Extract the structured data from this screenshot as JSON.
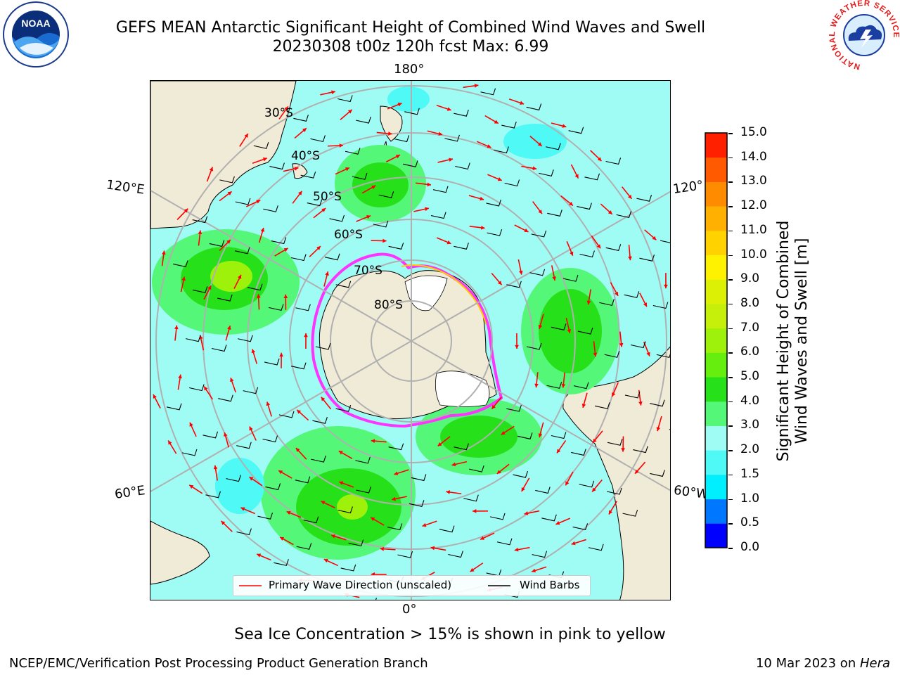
{
  "title": {
    "line1": "GEFS MEAN Antarctic Significant Height of Combined Wind Waves and Swell",
    "line2": "20230308 t00z 120h fcst   Max: 6.99"
  },
  "logos": {
    "left_text": "NOAA",
    "right_ring_text": "NATIONAL WEATHER SERVICE"
  },
  "map": {
    "longitude_labels": {
      "top": "180°",
      "bottom": "0°",
      "upper_left": "120°E",
      "lower_left": "60°E",
      "upper_right": "120°",
      "lower_right": "60°W"
    },
    "latitude_labels": [
      "30°S",
      "40°S",
      "50°S",
      "60°S",
      "70°S",
      "80°S"
    ],
    "legend": {
      "wave_direction": "Primary Wave Direction (unscaled)",
      "wind_barbs": "Wind Barbs"
    },
    "colors": {
      "land": "#efebd7",
      "ocean_low": "#9ffcf5",
      "cyan": "#4ef9f6",
      "green_light": "#55f778",
      "green": "#26e11a",
      "lime": "#9ef10a",
      "yellow_green": "#dbf004",
      "ice_edge": "#ff33ff",
      "arrow": "#ff0000"
    }
  },
  "colorbar": {
    "label_line1": "Significant Height of Combined",
    "label_line2": "Wind Waves and Swell [m]",
    "ticks": [
      "0.0",
      "0.5",
      "1.0",
      "1.5",
      "2.0",
      "3.0",
      "4.0",
      "5.0",
      "6.0",
      "7.0",
      "8.0",
      "9.0",
      "10.0",
      "11.0",
      "12.0",
      "13.0",
      "14.0",
      "15.0"
    ],
    "colors": [
      "#0000ff",
      "#0077ff",
      "#00efff",
      "#4ef9f6",
      "#9ffcf5",
      "#55f778",
      "#26e11a",
      "#66ee0e",
      "#9ef10a",
      "#c6f00a",
      "#dbf004",
      "#fff200",
      "#ffd200",
      "#ffb000",
      "#ff8c00",
      "#ff5a00",
      "#ff2000"
    ]
  },
  "note": "Sea Ice Concentration > 15% is shown in pink to yellow",
  "footer": {
    "left": "NCEP/EMC/Verification Post Processing Product Generation Branch",
    "right_date": "10 Mar 2023 on ",
    "right_machine": "Hera"
  }
}
